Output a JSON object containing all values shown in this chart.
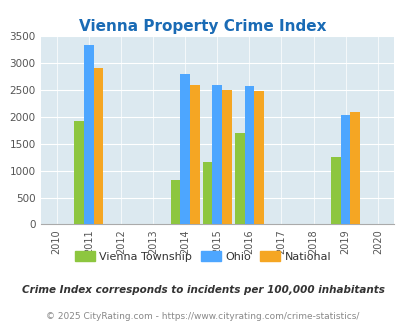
{
  "title": "Vienna Property Crime Index",
  "years": [
    2010,
    2011,
    2012,
    2013,
    2014,
    2015,
    2016,
    2017,
    2018,
    2019,
    2020
  ],
  "bar_years": [
    2011,
    2014,
    2015,
    2016,
    2019
  ],
  "vienna": [
    1920,
    820,
    1170,
    1700,
    1260
  ],
  "ohio": [
    3340,
    2800,
    2600,
    2580,
    2040
  ],
  "national": [
    2910,
    2600,
    2500,
    2480,
    2100
  ],
  "vienna_color": "#8dc63f",
  "ohio_color": "#4da6ff",
  "national_color": "#f5a623",
  "bg_color": "#dce9f0",
  "title_color": "#1a6bb5",
  "ylim": [
    0,
    3500
  ],
  "yticks": [
    0,
    500,
    1000,
    1500,
    2000,
    2500,
    3000,
    3500
  ],
  "legend_labels": [
    "Vienna Township",
    "Ohio",
    "National"
  ],
  "footnote1": "Crime Index corresponds to incidents per 100,000 inhabitants",
  "footnote2": "© 2025 CityRating.com - https://www.cityrating.com/crime-statistics/",
  "bar_width": 0.3
}
